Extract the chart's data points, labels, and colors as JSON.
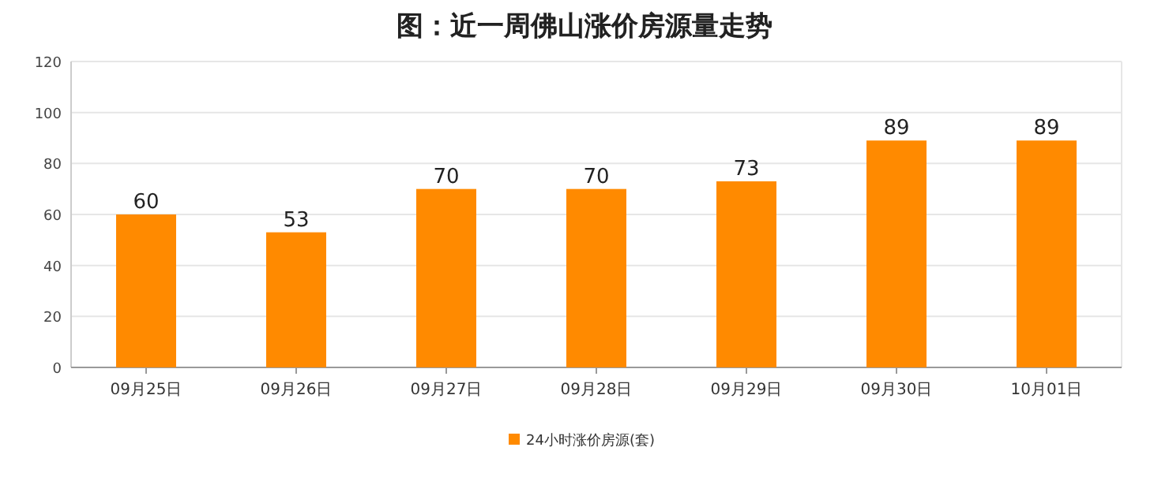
{
  "chart_data": {
    "type": "bar",
    "title": "图：近一周佛山涨价房源量走势",
    "categories": [
      "09月25日",
      "09月26日",
      "09月27日",
      "09月28日",
      "09月29日",
      "09月30日",
      "10月01日"
    ],
    "series": [
      {
        "name": "24小时涨价房源(套)",
        "color": "#ff8a00",
        "values": [
          60,
          53,
          70,
          70,
          73,
          89,
          89
        ]
      }
    ],
    "ylim": [
      0,
      120
    ],
    "yticks": [
      0,
      20,
      40,
      60,
      80,
      100,
      120
    ],
    "grid": "y",
    "legend": "bottom",
    "data_labels": true
  }
}
